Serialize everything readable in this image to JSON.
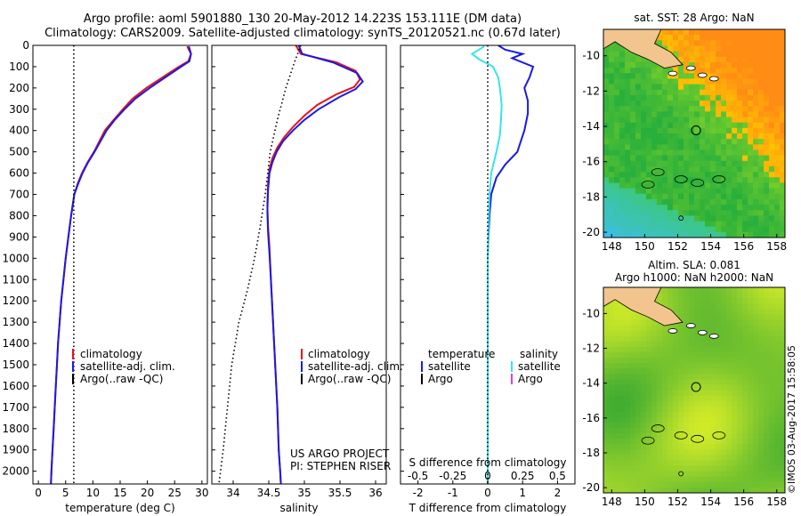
{
  "header": {
    "line1": "Argo profile: aoml 5901880_130 20-May-2012 14.223S 153.111E (DM data)",
    "line2": "Climatology: CARS2009. Satellite-adjusted climatology: synTS_20120521.nc (0.67d later)"
  },
  "watermark": "©IMOS 03-Aug-2017 15:58:05",
  "colors": {
    "red": "#e8101c",
    "blue": "#1a1ae6",
    "cyan": "#38e4ec",
    "magenta": "#e040e0",
    "black": "#000000"
  },
  "depth_axis": {
    "ticks": [
      0,
      100,
      200,
      300,
      400,
      500,
      600,
      700,
      800,
      900,
      1000,
      1100,
      1200,
      1300,
      1400,
      1500,
      1600,
      1700,
      1800,
      1900,
      2000
    ],
    "ylim": [
      0,
      2060
    ]
  },
  "chart_data": [
    {
      "type": "line",
      "panel": "temperature",
      "xlabel": "temperature (deg C)",
      "xlim": [
        -1,
        31
      ],
      "xticks": [
        "0",
        "5",
        "10",
        "15",
        "20",
        "25",
        "30"
      ],
      "xtick_values": [
        0,
        5,
        10,
        15,
        20,
        25,
        30
      ],
      "legend": {
        "placement": "lower-center",
        "entries": [
          "climatology",
          "satellite-adj. clim.",
          "Argo(..raw -QC)"
        ]
      },
      "series": [
        {
          "name": "climatology",
          "color": "red",
          "style": "solid",
          "points": [
            [
              27.3,
              5
            ],
            [
              28,
              40
            ],
            [
              27.5,
              75
            ],
            [
              25.8,
              100
            ],
            [
              22.8,
              150
            ],
            [
              19.8,
              200
            ],
            [
              17.3,
              250
            ],
            [
              15.5,
              300
            ],
            [
              13.8,
              350
            ],
            [
              12.2,
              400
            ],
            [
              11.2,
              450
            ],
            [
              10.2,
              500
            ],
            [
              9.0,
              550
            ],
            [
              8.0,
              600
            ],
            [
              7.2,
              650
            ],
            [
              6.6,
              700
            ],
            [
              6.0,
              800
            ],
            [
              5.5,
              900
            ],
            [
              5.0,
              1000
            ],
            [
              4.6,
              1100
            ],
            [
              4.2,
              1200
            ],
            [
              3.9,
              1300
            ],
            [
              3.6,
              1400
            ],
            [
              3.4,
              1500
            ],
            [
              3.2,
              1600
            ],
            [
              3.0,
              1700
            ],
            [
              2.8,
              1800
            ],
            [
              2.6,
              1900
            ],
            [
              2.4,
              2000
            ],
            [
              2.3,
              2060
            ]
          ]
        },
        {
          "name": "satellite-adj. clim.",
          "color": "blue",
          "style": "solid",
          "points": [
            [
              27.6,
              5
            ],
            [
              28,
              40
            ],
            [
              27.7,
              75
            ],
            [
              26.2,
              100
            ],
            [
              23.3,
              150
            ],
            [
              20.4,
              200
            ],
            [
              17.8,
              250
            ],
            [
              15.8,
              300
            ],
            [
              14.0,
              350
            ],
            [
              12.5,
              400
            ],
            [
              11.4,
              450
            ],
            [
              10.3,
              500
            ],
            [
              9.1,
              550
            ],
            [
              8.1,
              600
            ],
            [
              7.3,
              650
            ],
            [
              6.6,
              700
            ],
            [
              6.0,
              800
            ],
            [
              5.5,
              900
            ],
            [
              5.0,
              1000
            ],
            [
              4.6,
              1100
            ],
            [
              4.2,
              1200
            ],
            [
              3.9,
              1300
            ],
            [
              3.6,
              1400
            ],
            [
              3.4,
              1500
            ],
            [
              3.2,
              1600
            ],
            [
              3.0,
              1700
            ],
            [
              2.8,
              1800
            ],
            [
              2.6,
              1900
            ],
            [
              2.4,
              2000
            ],
            [
              2.3,
              2060
            ]
          ]
        },
        {
          "name": "Argo(..raw -QC)",
          "color": "black",
          "style": "dotted",
          "points": [
            [
              6.5,
              0
            ],
            [
              6.5,
              2060
            ]
          ]
        }
      ]
    },
    {
      "type": "line",
      "panel": "salinity",
      "xlabel": "salinity",
      "xlim": [
        33.7,
        36.15
      ],
      "xticks": [
        "34",
        "34.5",
        "35",
        "35.5",
        "36"
      ],
      "xtick_values": [
        34,
        34.5,
        35,
        35.5,
        36
      ],
      "legend": {
        "placement": "lower-center",
        "entries": [
          "climatology",
          "satellite-adj. clim.",
          "Argo(..raw -QC)"
        ]
      },
      "annotation": [
        "US ARGO PROJECT",
        "PI: STEPHEN RISER"
      ],
      "series": [
        {
          "name": "climatology",
          "color": "red",
          "style": "solid",
          "points": [
            [
              34.88,
              0
            ],
            [
              34.95,
              40
            ],
            [
              35.45,
              80
            ],
            [
              35.72,
              120
            ],
            [
              35.78,
              160
            ],
            [
              35.7,
              195
            ],
            [
              35.45,
              230
            ],
            [
              35.18,
              280
            ],
            [
              35.0,
              330
            ],
            [
              34.85,
              380
            ],
            [
              34.72,
              430
            ],
            [
              34.62,
              480
            ],
            [
              34.55,
              530
            ],
            [
              34.51,
              580
            ],
            [
              34.49,
              650
            ],
            [
              34.48,
              750
            ],
            [
              34.49,
              850
            ],
            [
              34.51,
              950
            ],
            [
              34.53,
              1100
            ],
            [
              34.56,
              1300
            ],
            [
              34.59,
              1500
            ],
            [
              34.62,
              1700
            ],
            [
              34.64,
              1900
            ],
            [
              34.66,
              2000
            ],
            [
              34.67,
              2060
            ]
          ]
        },
        {
          "name": "satellite-adj. clim.",
          "color": "blue",
          "style": "solid",
          "points": [
            [
              34.92,
              0
            ],
            [
              34.97,
              40
            ],
            [
              35.4,
              80
            ],
            [
              35.74,
              130
            ],
            [
              35.82,
              170
            ],
            [
              35.72,
              205
            ],
            [
              35.48,
              245
            ],
            [
              35.2,
              300
            ],
            [
              35.0,
              350
            ],
            [
              34.84,
              400
            ],
            [
              34.7,
              450
            ],
            [
              34.61,
              500
            ],
            [
              34.55,
              550
            ],
            [
              34.51,
              600
            ],
            [
              34.49,
              680
            ],
            [
              34.48,
              780
            ],
            [
              34.49,
              880
            ],
            [
              34.51,
              980
            ],
            [
              34.53,
              1100
            ],
            [
              34.56,
              1300
            ],
            [
              34.59,
              1500
            ],
            [
              34.62,
              1700
            ],
            [
              34.64,
              1900
            ],
            [
              34.66,
              2000
            ],
            [
              34.67,
              2060
            ]
          ]
        },
        {
          "name": "Argo(..raw -QC)",
          "color": "black",
          "style": "dotted",
          "points": [
            [
              34.95,
              0
            ],
            [
              34.86,
              80
            ],
            [
              34.74,
              200
            ],
            [
              34.62,
              350
            ],
            [
              34.52,
              500
            ],
            [
              34.45,
              700
            ],
            [
              34.38,
              850
            ],
            [
              34.3,
              1000
            ],
            [
              34.2,
              1150
            ],
            [
              34.08,
              1300
            ],
            [
              33.98,
              1500
            ],
            [
              33.92,
              1700
            ],
            [
              33.86,
              1900
            ],
            [
              33.8,
              2060
            ]
          ]
        }
      ]
    },
    {
      "type": "line",
      "panel": "difference",
      "xlabel_top": "S difference from climatology",
      "xticks_top": [
        "-0.5",
        "-0.25",
        "0",
        "0.25",
        "0.5"
      ],
      "xtick_values_top": [
        -0.5,
        -0.25,
        0,
        0.25,
        0.5
      ],
      "xlabel": "T difference from climatology",
      "xticks": [
        "-2",
        "-1",
        "0",
        "1",
        "2"
      ],
      "xtick_values": [
        -2,
        -1,
        0,
        1,
        2
      ],
      "xlim": [
        -2.5,
        2.5
      ],
      "legend": {
        "placement": "lower-center",
        "headers": [
          "temperature",
          "salinity"
        ],
        "entries": [
          "satellite",
          "Argo",
          "satellite",
          "Argo"
        ]
      },
      "series": [
        {
          "name": "satellite",
          "group": "temperature",
          "color": "blue",
          "style": "solid",
          "points": [
            [
              0.3,
              0
            ],
            [
              0.5,
              20
            ],
            [
              1.0,
              40
            ],
            [
              0.7,
              60
            ],
            [
              1.3,
              100
            ],
            [
              1.2,
              150
            ],
            [
              1.05,
              200
            ],
            [
              1.15,
              260
            ],
            [
              1.15,
              320
            ],
            [
              1.05,
              400
            ],
            [
              0.95,
              450
            ],
            [
              0.85,
              500
            ],
            [
              0.5,
              560
            ],
            [
              0.25,
              620
            ],
            [
              0.1,
              700
            ],
            [
              0.05,
              800
            ],
            [
              0.02,
              900
            ],
            [
              0.0,
              1000
            ],
            [
              0.0,
              1100
            ],
            [
              0.0,
              2060
            ]
          ]
        },
        {
          "name": "satellite",
          "group": "salinity",
          "color": "cyan",
          "style": "solid",
          "points": [
            [
              -0.1,
              5
            ],
            [
              -0.45,
              40
            ],
            [
              -0.25,
              65
            ],
            [
              0.15,
              100
            ],
            [
              0.3,
              150
            ],
            [
              0.35,
              200
            ],
            [
              0.4,
              280
            ],
            [
              0.38,
              350
            ],
            [
              0.35,
              420
            ],
            [
              0.25,
              500
            ],
            [
              0.1,
              600
            ],
            [
              0.05,
              700
            ],
            [
              0.02,
              850
            ],
            [
              0.0,
              1000
            ],
            [
              0.0,
              2060
            ]
          ]
        },
        {
          "name": "zero",
          "color": "black",
          "style": "dotted",
          "points": [
            [
              0,
              0
            ],
            [
              0,
              2060
            ]
          ]
        }
      ]
    }
  ],
  "maps": [
    {
      "title": "sat. SST: 28 Argo: NaN",
      "lon_ticks": [
        "148",
        "150",
        "152",
        "154",
        "156",
        "158"
      ],
      "lon_values": [
        148,
        150,
        152,
        154,
        156,
        158
      ],
      "lat_ticks": [
        "-10",
        "-12",
        "-14",
        "-16",
        "-18",
        "-20"
      ],
      "lat_values": [
        -10,
        -12,
        -14,
        -16,
        -18,
        -20
      ],
      "lon_range": [
        147.5,
        158.5
      ],
      "lat_range": [
        -20.3,
        -8.5
      ],
      "profile": [
        153.111,
        -14.223
      ],
      "style": "sst"
    },
    {
      "title_lines": [
        "Altim. SLA: 0.081",
        "Argo h1000: NaN h2000: NaN"
      ],
      "lon_ticks": [
        "148",
        "150",
        "152",
        "154",
        "156",
        "158"
      ],
      "lon_values": [
        148,
        150,
        152,
        154,
        156,
        158
      ],
      "lat_ticks": [
        "-10",
        "-12",
        "-14",
        "-16",
        "-18",
        "-20"
      ],
      "lat_values": [
        -10,
        -12,
        -14,
        -16,
        -18,
        -20
      ],
      "lon_range": [
        147.5,
        158.5
      ],
      "lat_range": [
        -20.3,
        -8.5
      ],
      "profile": [
        153.111,
        -14.223
      ],
      "style": "sla"
    }
  ]
}
